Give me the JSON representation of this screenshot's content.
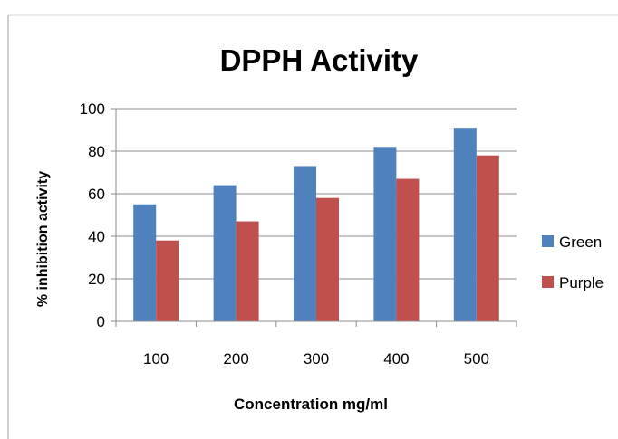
{
  "chart_data": {
    "type": "bar",
    "title": "DPPH Activity",
    "xlabel": "Concentration mg/ml",
    "ylabel": "% inhibition activity",
    "categories": [
      "100",
      "200",
      "300",
      "400",
      "500"
    ],
    "series": [
      {
        "name": "Green",
        "values": [
          55,
          64,
          73,
          82,
          91
        ],
        "color": "#4f81bd"
      },
      {
        "name": "Purple",
        "values": [
          38,
          47,
          58,
          67,
          78
        ],
        "color": "#c0504d"
      }
    ],
    "ylim": [
      0,
      100
    ],
    "yticks": [
      "0",
      "20",
      "40",
      "60",
      "80",
      "100"
    ],
    "grid": true,
    "legend_position": "right"
  }
}
